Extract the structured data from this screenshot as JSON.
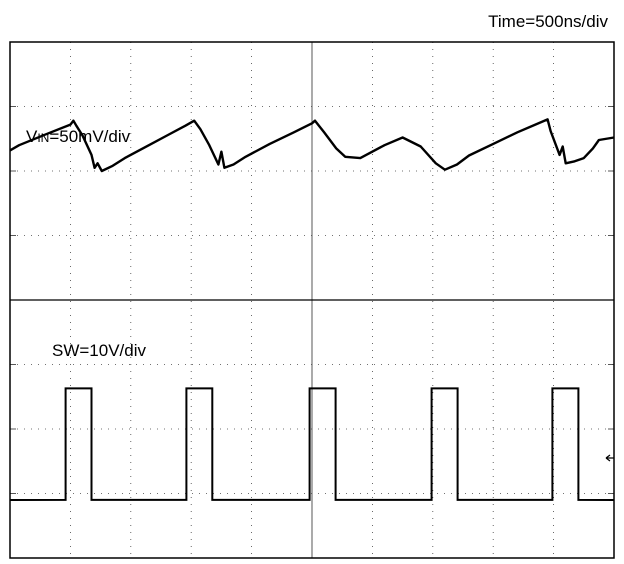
{
  "header": {
    "timebase": "Time=500ns/div"
  },
  "chart_data": [
    {
      "type": "line",
      "title": "",
      "label": "VIN=50mV/div",
      "label_main": "V",
      "label_sub": "IN",
      "label_rest": "=50mV/div",
      "xlabel": "",
      "ylabel": "",
      "x_units": "div",
      "y_units": "div",
      "grid": true,
      "xlim": [
        0,
        10
      ],
      "ylim": [
        0,
        4
      ],
      "series": [
        {
          "points": [
            [
              0.0,
              2.32
            ],
            [
              0.15,
              2.4
            ],
            [
              0.6,
              2.57
            ],
            [
              1.0,
              2.72
            ],
            [
              1.05,
              2.78
            ],
            [
              1.1,
              2.7
            ],
            [
              1.2,
              2.55
            ],
            [
              1.35,
              2.25
            ],
            [
              1.4,
              2.05
            ],
            [
              1.45,
              2.12
            ],
            [
              1.52,
              2.0
            ],
            [
              1.7,
              2.08
            ],
            [
              1.9,
              2.2
            ],
            [
              2.3,
              2.4
            ],
            [
              2.6,
              2.55
            ],
            [
              2.9,
              2.7
            ],
            [
              3.05,
              2.78
            ],
            [
              3.15,
              2.65
            ],
            [
              3.3,
              2.4
            ],
            [
              3.45,
              2.1
            ],
            [
              3.5,
              2.3
            ],
            [
              3.55,
              2.05
            ],
            [
              3.7,
              2.1
            ],
            [
              3.9,
              2.22
            ],
            [
              4.3,
              2.42
            ],
            [
              4.7,
              2.6
            ],
            [
              5.0,
              2.74
            ],
            [
              5.05,
              2.78
            ],
            [
              5.2,
              2.6
            ],
            [
              5.4,
              2.35
            ],
            [
              5.55,
              2.22
            ],
            [
              5.8,
              2.2
            ],
            [
              6.2,
              2.4
            ],
            [
              6.5,
              2.52
            ],
            [
              6.8,
              2.38
            ],
            [
              7.05,
              2.12
            ],
            [
              7.2,
              2.02
            ],
            [
              7.4,
              2.1
            ],
            [
              7.6,
              2.24
            ],
            [
              8.0,
              2.42
            ],
            [
              8.4,
              2.6
            ],
            [
              8.9,
              2.8
            ],
            [
              8.95,
              2.62
            ],
            [
              9.1,
              2.25
            ],
            [
              9.15,
              2.38
            ],
            [
              9.2,
              2.12
            ],
            [
              9.35,
              2.15
            ],
            [
              9.5,
              2.2
            ],
            [
              9.65,
              2.35
            ],
            [
              9.75,
              2.48
            ],
            [
              10.0,
              2.52
            ]
          ]
        }
      ]
    },
    {
      "type": "line",
      "title": "",
      "label": "SW=10V/div",
      "xlabel": "",
      "ylabel": "",
      "x_units": "div",
      "y_units": "div",
      "grid": true,
      "xlim": [
        0,
        10
      ],
      "ylim": [
        0,
        4
      ],
      "series": [
        {
          "low": 0.9,
          "high": 2.63,
          "pulses": [
            [
              0.92,
              1.35
            ],
            [
              2.92,
              3.35
            ],
            [
              4.96,
              5.39
            ],
            [
              6.98,
              7.41
            ],
            [
              8.98,
              9.41
            ]
          ]
        }
      ]
    }
  ]
}
